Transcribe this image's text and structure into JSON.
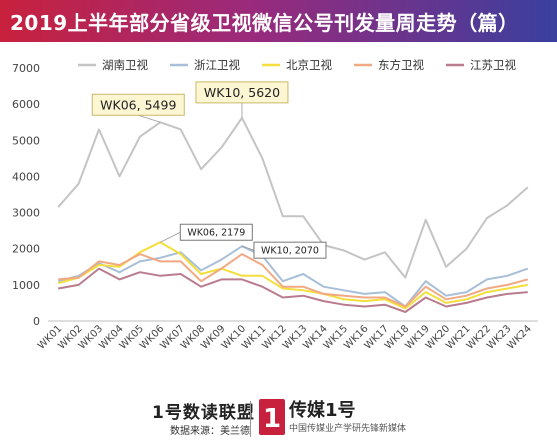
{
  "chart_data": {
    "type": "line",
    "title": "2019上半年部分省级卫视微信公号刊发量周走势（篇）",
    "categories": [
      "WK01",
      "WK02",
      "WK03",
      "WK04",
      "WK05",
      "WK06",
      "WK07",
      "WK08",
      "WK09",
      "WK10",
      "WK11",
      "WK12",
      "WK13",
      "WK14",
      "WK15",
      "WK16",
      "WK17",
      "WK18",
      "WK19",
      "WK20",
      "WK21",
      "WK22",
      "WK23",
      "WK24"
    ],
    "ylim": [
      0,
      7000
    ],
    "yticks": [
      0,
      1000,
      2000,
      3000,
      4000,
      5000,
      6000,
      7000
    ],
    "grid": false,
    "legend_position": "top",
    "series": [
      {
        "name": "湖南卫视",
        "color": "#c4c4c4",
        "values": [
          3150,
          3800,
          5300,
          4000,
          5100,
          5499,
          5300,
          4200,
          4800,
          5620,
          4500,
          2900,
          2900,
          2100,
          1950,
          1700,
          1900,
          1200,
          2800,
          1500,
          2000,
          2850,
          3200,
          3700
        ]
      },
      {
        "name": "浙江卫视",
        "color": "#a8bfd8",
        "values": [
          1100,
          1250,
          1600,
          1350,
          1650,
          1750,
          1900,
          1400,
          1700,
          2070,
          1800,
          1100,
          1300,
          950,
          850,
          750,
          800,
          400,
          1100,
          700,
          800,
          1150,
          1250,
          1450
        ]
      },
      {
        "name": "北京卫视",
        "color": "#f3de3b",
        "values": [
          1050,
          1200,
          1550,
          1500,
          1900,
          2179,
          1850,
          1300,
          1450,
          1250,
          1250,
          900,
          850,
          750,
          600,
          550,
          600,
          350,
          800,
          500,
          600,
          800,
          900,
          1000
        ]
      },
      {
        "name": "东方卫视",
        "color": "#f0a983",
        "values": [
          1150,
          1200,
          1650,
          1550,
          1850,
          1650,
          1650,
          1100,
          1450,
          1850,
          1550,
          950,
          950,
          750,
          700,
          650,
          650,
          400,
          950,
          600,
          700,
          900,
          1000,
          1150
        ]
      },
      {
        "name": "江苏卫视",
        "color": "#b97c8e",
        "values": [
          900,
          1000,
          1450,
          1150,
          1350,
          1250,
          1300,
          950,
          1150,
          1150,
          950,
          650,
          700,
          550,
          450,
          400,
          450,
          250,
          650,
          400,
          500,
          650,
          750,
          800
        ]
      }
    ],
    "annotations": [
      {
        "series": "湖南卫视",
        "category": "WK06",
        "text": "WK06, 5499"
      },
      {
        "series": "湖南卫视",
        "category": "WK10",
        "text": "WK10, 5620"
      },
      {
        "series": "北京卫视",
        "category": "WK06",
        "text": "WK06, 2179"
      },
      {
        "series": "浙江卫视",
        "category": "WK10",
        "text": "WK10, 2070"
      }
    ]
  },
  "footer": {
    "brand_left": "1号数读联盟",
    "source": "数据来源：美兰德",
    "logo_glyph": "1",
    "brand_right": "传媒1号",
    "tagline": "中国传媒业产学研先锋新媒体"
  },
  "colors": {
    "logo": "#c8213d",
    "callout_fill": "#fdf6d3",
    "callout_border": "#c9b96a"
  }
}
